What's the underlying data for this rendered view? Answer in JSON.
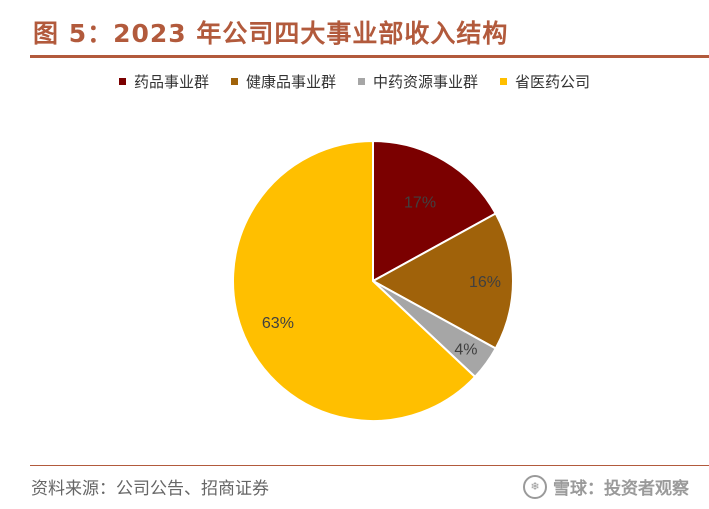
{
  "header": {
    "title": "图 5：2023 年公司四大事业部收入结构"
  },
  "chart_data": {
    "type": "pie",
    "title": "图 5：2023 年公司四大事业部收入结构",
    "legend_position": "top",
    "slices": [
      {
        "name": "药品事业群",
        "value": 17,
        "label": "17%",
        "color": "#7b0000"
      },
      {
        "name": "健康品事业群",
        "value": 16,
        "label": "16%",
        "color": "#a0620a"
      },
      {
        "name": "中药资源事业群",
        "value": 4,
        "label": "4%",
        "color": "#a6a6a6"
      },
      {
        "name": "省医药公司",
        "value": 63,
        "label": "63%",
        "color": "#ffbf00"
      }
    ]
  },
  "footer": {
    "source": "资料来源：公司公告、招商证券",
    "watermark": "雪球：投资者观察"
  }
}
